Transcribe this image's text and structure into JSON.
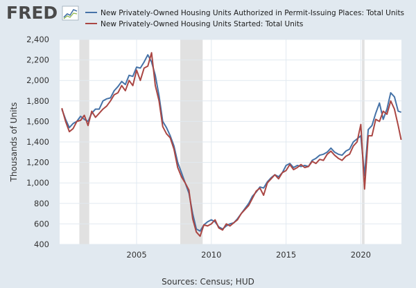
{
  "logo": {
    "text": "FRED"
  },
  "source": "Sources: Census; HUD",
  "colors": {
    "permits": "#4572a7",
    "starts": "#aa4643",
    "recession": "#e1e1e1",
    "grid": "#e1e9f0"
  },
  "chart_data": {
    "type": "line",
    "xlim": [
      1999.85,
      2022.72
    ],
    "ylim": [
      400,
      2400
    ],
    "ylabel": "Thousands of Units",
    "x_ticks": [
      2005,
      2010,
      2015,
      2020
    ],
    "y_ticks": [
      400,
      600,
      800,
      1000,
      1200,
      1400,
      1600,
      1800,
      2000,
      2200,
      2400
    ],
    "y_tick_labels": [
      "400",
      "600",
      "800",
      "1,000",
      "1,200",
      "1,400",
      "1,600",
      "1,800",
      "2,000",
      "2,200",
      "2,400"
    ],
    "grid": true,
    "legend_position": "top",
    "recessions": [
      [
        2001.17,
        2001.83
      ],
      [
        2007.92,
        2009.42
      ],
      [
        2020.08,
        2020.25
      ]
    ],
    "series": [
      {
        "name": "New Privately-Owned Housing Units Authorized in Permit-Issuing Places: Total Units",
        "key": "permits",
        "x": [
          2000.0,
          2000.25,
          2000.5,
          2000.75,
          2001.0,
          2001.25,
          2001.5,
          2001.75,
          2002.0,
          2002.25,
          2002.5,
          2002.75,
          2003.0,
          2003.25,
          2003.5,
          2003.75,
          2004.0,
          2004.25,
          2004.5,
          2004.75,
          2005.0,
          2005.25,
          2005.5,
          2005.75,
          2006.0,
          2006.25,
          2006.5,
          2006.75,
          2007.0,
          2007.25,
          2007.5,
          2007.75,
          2008.0,
          2008.25,
          2008.5,
          2008.75,
          2009.0,
          2009.25,
          2009.5,
          2009.75,
          2010.0,
          2010.25,
          2010.5,
          2010.75,
          2011.0,
          2011.25,
          2011.5,
          2011.75,
          2012.0,
          2012.25,
          2012.5,
          2012.75,
          2013.0,
          2013.25,
          2013.5,
          2013.75,
          2014.0,
          2014.25,
          2014.5,
          2014.75,
          2015.0,
          2015.25,
          2015.5,
          2015.75,
          2016.0,
          2016.25,
          2016.5,
          2016.75,
          2017.0,
          2017.25,
          2017.5,
          2017.75,
          2018.0,
          2018.25,
          2018.5,
          2018.75,
          2019.0,
          2019.25,
          2019.5,
          2019.75,
          2020.0,
          2020.25,
          2020.5,
          2020.75,
          2021.0,
          2021.25,
          2021.5,
          2021.75,
          2022.0,
          2022.25,
          2022.5,
          2022.7
        ],
        "y": [
          1720,
          1620,
          1540,
          1580,
          1600,
          1650,
          1620,
          1600,
          1680,
          1720,
          1720,
          1800,
          1820,
          1830,
          1900,
          1940,
          1990,
          1960,
          2050,
          2040,
          2130,
          2120,
          2180,
          2250,
          2180,
          2050,
          1850,
          1600,
          1540,
          1460,
          1360,
          1200,
          1100,
          1000,
          900,
          700,
          550,
          530,
          590,
          620,
          640,
          620,
          570,
          550,
          580,
          600,
          610,
          650,
          700,
          750,
          800,
          870,
          910,
          960,
          950,
          1010,
          1050,
          1080,
          1060,
          1100,
          1170,
          1190,
          1150,
          1170,
          1160,
          1170,
          1160,
          1220,
          1240,
          1270,
          1280,
          1300,
          1340,
          1300,
          1280,
          1270,
          1310,
          1330,
          1400,
          1430,
          1460,
          1070,
          1520,
          1560,
          1680,
          1780,
          1620,
          1720,
          1880,
          1840,
          1700,
          1690
        ]
      },
      {
        "name": "New Privately-Owned Housing Units Started: Total Units",
        "key": "starts",
        "x": [
          2000.0,
          2000.25,
          2000.5,
          2000.75,
          2001.0,
          2001.25,
          2001.5,
          2001.75,
          2002.0,
          2002.25,
          2002.5,
          2002.75,
          2003.0,
          2003.25,
          2003.5,
          2003.75,
          2004.0,
          2004.25,
          2004.5,
          2004.75,
          2005.0,
          2005.25,
          2005.5,
          2005.75,
          2006.0,
          2006.25,
          2006.5,
          2006.75,
          2007.0,
          2007.25,
          2007.5,
          2007.75,
          2008.0,
          2008.25,
          2008.5,
          2008.75,
          2009.0,
          2009.25,
          2009.5,
          2009.75,
          2010.0,
          2010.25,
          2010.5,
          2010.75,
          2011.0,
          2011.25,
          2011.5,
          2011.75,
          2012.0,
          2012.25,
          2012.5,
          2012.75,
          2013.0,
          2013.25,
          2013.5,
          2013.75,
          2014.0,
          2014.25,
          2014.5,
          2014.75,
          2015.0,
          2015.25,
          2015.5,
          2015.75,
          2016.0,
          2016.25,
          2016.5,
          2016.75,
          2017.0,
          2017.25,
          2017.5,
          2017.75,
          2018.0,
          2018.25,
          2018.5,
          2018.75,
          2019.0,
          2019.25,
          2019.5,
          2019.75,
          2020.0,
          2020.25,
          2020.5,
          2020.75,
          2021.0,
          2021.25,
          2021.5,
          2021.75,
          2022.0,
          2022.25,
          2022.5,
          2022.7
        ],
        "y": [
          1730,
          1600,
          1500,
          1530,
          1600,
          1610,
          1660,
          1560,
          1700,
          1640,
          1680,
          1720,
          1750,
          1800,
          1860,
          1880,
          1950,
          1900,
          2000,
          1950,
          2100,
          2000,
          2120,
          2140,
          2270,
          1950,
          1800,
          1550,
          1480,
          1440,
          1330,
          1150,
          1060,
          1000,
          930,
          650,
          520,
          480,
          590,
          580,
          600,
          640,
          560,
          540,
          600,
          580,
          610,
          640,
          700,
          740,
          780,
          850,
          920,
          950,
          880,
          1000,
          1040,
          1080,
          1040,
          1100,
          1120,
          1180,
          1130,
          1150,
          1180,
          1150,
          1160,
          1210,
          1190,
          1230,
          1220,
          1280,
          1310,
          1270,
          1240,
          1220,
          1260,
          1280,
          1360,
          1400,
          1570,
          940,
          1460,
          1460,
          1620,
          1600,
          1700,
          1670,
          1800,
          1720,
          1560,
          1420
        ]
      }
    ]
  }
}
